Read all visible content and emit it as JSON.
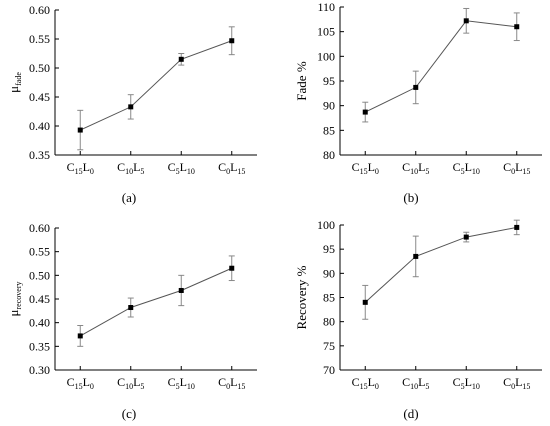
{
  "figure": {
    "panels": [
      "(a)",
      "(b)",
      "(c)",
      "(d)"
    ]
  },
  "chart_data": [
    {
      "type": "line",
      "panel_label": "(a)",
      "categories": [
        {
          "main": "C",
          "s1": "15",
          "sub": "L",
          "s2": "0"
        },
        {
          "main": "C",
          "s1": "10",
          "sub": "L",
          "s2": "5"
        },
        {
          "main": "C",
          "s1": "5",
          "sub": "L",
          "s2": "10"
        },
        {
          "main": "C",
          "s1": "0",
          "sub": "L",
          "s2": "15"
        }
      ],
      "values": [
        0.393,
        0.433,
        0.515,
        0.547
      ],
      "errors": [
        0.034,
        0.021,
        0.01,
        0.024
      ],
      "ylabel": {
        "main": "μ",
        "sub": "fade"
      },
      "ylim": [
        0.35,
        0.6
      ],
      "yticks": [
        "0.35",
        "0.40",
        "0.45",
        "0.50",
        "0.55",
        "0.60"
      ],
      "grid": false
    },
    {
      "type": "line",
      "panel_label": "(b)",
      "categories": [
        {
          "main": "C",
          "s1": "15",
          "sub": "L",
          "s2": "0"
        },
        {
          "main": "C",
          "s1": "10",
          "sub": "L",
          "s2": "5"
        },
        {
          "main": "C",
          "s1": "5",
          "sub": "L",
          "s2": "10"
        },
        {
          "main": "C",
          "s1": "0",
          "sub": "L",
          "s2": "15"
        }
      ],
      "values": [
        88.7,
        93.7,
        107.2,
        106.0
      ],
      "errors": [
        2.0,
        3.3,
        2.5,
        2.8
      ],
      "ylabel": {
        "main": "Fade %",
        "sub": ""
      },
      "ylim": [
        80,
        110
      ],
      "yticks": [
        "80",
        "85",
        "90",
        "95",
        "100",
        "105",
        "110"
      ],
      "grid": false
    },
    {
      "type": "line",
      "panel_label": "(c)",
      "categories": [
        {
          "main": "C",
          "s1": "15",
          "sub": "L",
          "s2": "0"
        },
        {
          "main": "C",
          "s1": "10",
          "sub": "L",
          "s2": "5"
        },
        {
          "main": "C",
          "s1": "5",
          "sub": "L",
          "s2": "10"
        },
        {
          "main": "C",
          "s1": "0",
          "sub": "L",
          "s2": "15"
        }
      ],
      "values": [
        0.372,
        0.432,
        0.468,
        0.515
      ],
      "errors": [
        0.022,
        0.02,
        0.032,
        0.026
      ],
      "ylabel": {
        "main": "μ",
        "sub": "recovery"
      },
      "ylim": [
        0.3,
        0.6
      ],
      "yticks": [
        "0.30",
        "0.35",
        "0.40",
        "0.45",
        "0.50",
        "0.55",
        "0.60"
      ],
      "grid": false
    },
    {
      "type": "line",
      "panel_label": "(d)",
      "categories": [
        {
          "main": "C",
          "s1": "15",
          "sub": "L",
          "s2": "0"
        },
        {
          "main": "C",
          "s1": "10",
          "sub": "L",
          "s2": "5"
        },
        {
          "main": "C",
          "s1": "5",
          "sub": "L",
          "s2": "10"
        },
        {
          "main": "C",
          "s1": "0",
          "sub": "L",
          "s2": "15"
        }
      ],
      "values": [
        84.0,
        93.5,
        97.5,
        99.5
      ],
      "errors": [
        3.5,
        4.2,
        1.0,
        1.5
      ],
      "ylabel": {
        "main": "Recovery %",
        "sub": ""
      },
      "ylim": [
        70,
        100
      ],
      "yticks": [
        "70",
        "75",
        "80",
        "85",
        "90",
        "95",
        "100"
      ],
      "grid": false
    }
  ]
}
